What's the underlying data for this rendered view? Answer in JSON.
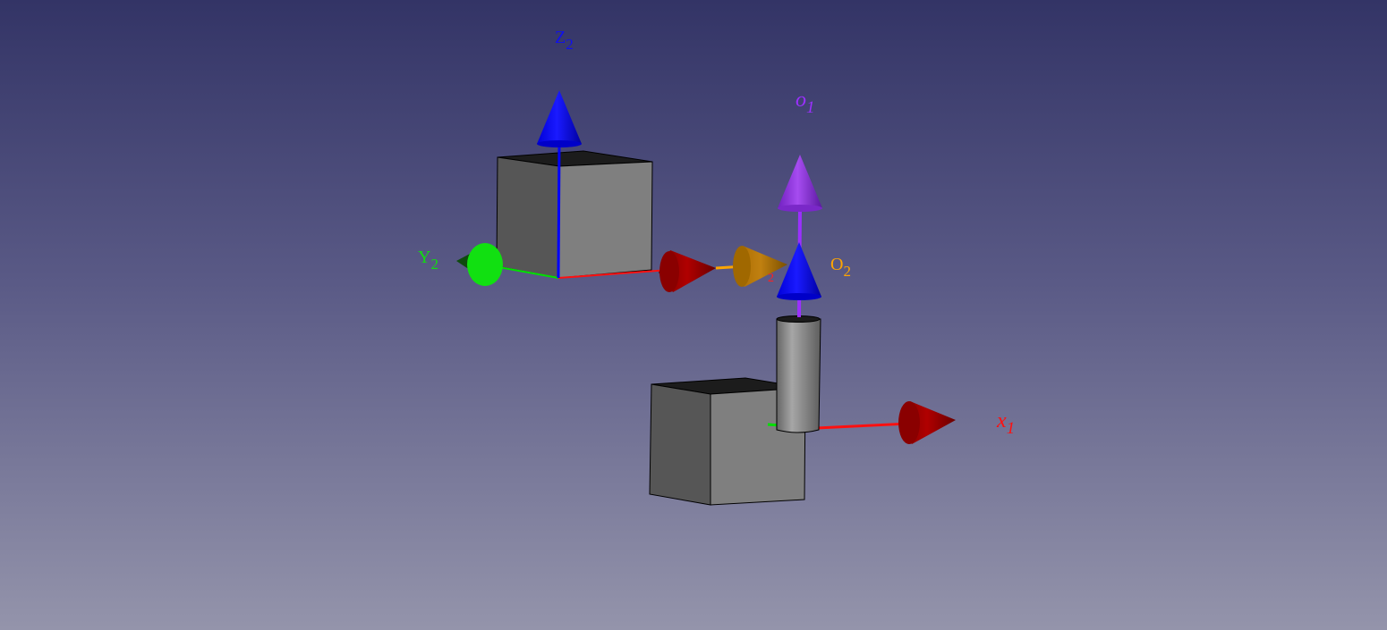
{
  "viewer": {
    "background_top": "#333466",
    "background_bottom": "#9494ab"
  },
  "colors": {
    "x_axis": "#ff0000",
    "y_axis": "#00e000",
    "z_axis": "#0000ff",
    "offset_axis": "#ffa500",
    "o1_axis": "#9b30ff"
  },
  "labels": {
    "z2": {
      "main": "Z",
      "sub": "2"
    },
    "y2": {
      "main": "Y",
      "sub": "2"
    },
    "x1": {
      "main": "x",
      "sub": "1"
    },
    "o1": {
      "main": "o",
      "sub": "1"
    },
    "o2": {
      "main": "O",
      "sub": "2"
    },
    "hidden": "2"
  },
  "objects": [
    {
      "name": "upper-cube",
      "shape": "box"
    },
    {
      "name": "lower-cube",
      "shape": "box"
    },
    {
      "name": "pillar",
      "shape": "cylinder"
    }
  ]
}
